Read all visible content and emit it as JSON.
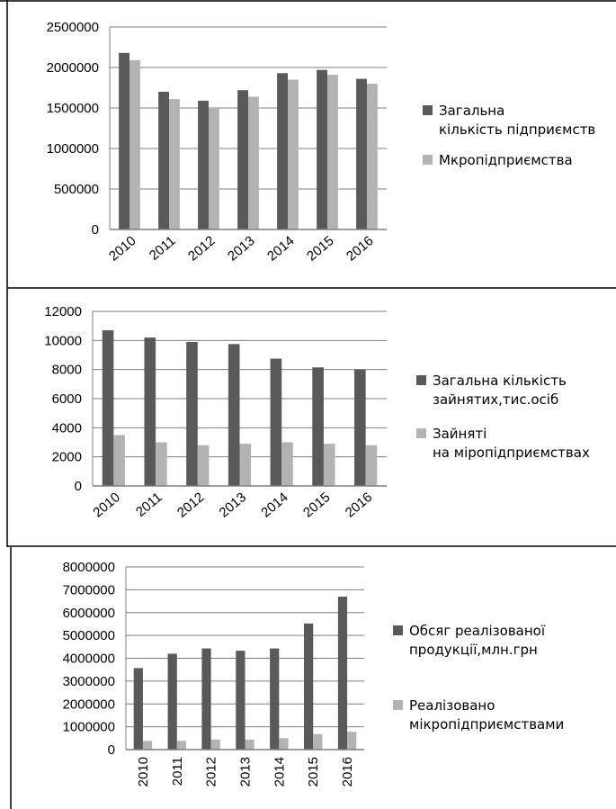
{
  "colors": {
    "dark": "#595959",
    "light": "#b3b3b3",
    "axis": "#7f7f7f",
    "grid": "#7f7f7f",
    "frame": "#000000"
  },
  "chart_data": [
    {
      "type": "bar",
      "categories": [
        "2010",
        "2011",
        "2012",
        "2013",
        "2014",
        "2015",
        "2016"
      ],
      "series": [
        {
          "name": "Загальна кількість підприємств",
          "values": [
            2180000,
            1700000,
            1590000,
            1720000,
            1930000,
            1970000,
            1860000
          ]
        },
        {
          "name": "Мкропідприємства",
          "values": [
            2090000,
            1610000,
            1490000,
            1640000,
            1850000,
            1910000,
            1800000
          ]
        }
      ],
      "ylim": [
        0,
        2500000
      ],
      "yticks": [
        "0",
        "500000",
        "1000000",
        "1500000",
        "2000000",
        "2500000"
      ],
      "grid": true,
      "legend": "right",
      "xtick_rotation": "diagonal"
    },
    {
      "type": "bar",
      "categories": [
        "2010",
        "2011",
        "2012",
        "2013",
        "2014",
        "2015",
        "2016"
      ],
      "series": [
        {
          "name": "Загальна кількість зайнятих,тис.осіб",
          "values": [
            10700,
            10200,
            9900,
            9750,
            8750,
            8150,
            8000
          ]
        },
        {
          "name": "Зайняті на міропідприємствах",
          "values": [
            3500,
            3000,
            2800,
            2900,
            3000,
            2900,
            2800
          ]
        }
      ],
      "ylim": [
        0,
        12000
      ],
      "yticks": [
        "0",
        "2000",
        "4000",
        "6000",
        "8000",
        "10000",
        "12000"
      ],
      "grid": true,
      "legend": "right",
      "xtick_rotation": "diagonal"
    },
    {
      "type": "bar",
      "categories": [
        "2010",
        "2011",
        "2012",
        "2013",
        "2014",
        "2015",
        "2016"
      ],
      "series": [
        {
          "name": "Обсяг реалізованої продукції,млн.грн",
          "values": [
            3570000,
            4200000,
            4430000,
            4330000,
            4430000,
            5520000,
            6700000
          ]
        },
        {
          "name": "Реалізовано мікропідприємствами",
          "values": [
            380000,
            380000,
            440000,
            440000,
            500000,
            680000,
            780000
          ]
        }
      ],
      "ylim": [
        0,
        8000000
      ],
      "yticks": [
        "0",
        "1000000",
        "2000000",
        "3000000",
        "4000000",
        "5000000",
        "6000000",
        "7000000",
        "8000000"
      ],
      "grid": true,
      "legend": "right",
      "xtick_rotation": "vertical"
    }
  ]
}
